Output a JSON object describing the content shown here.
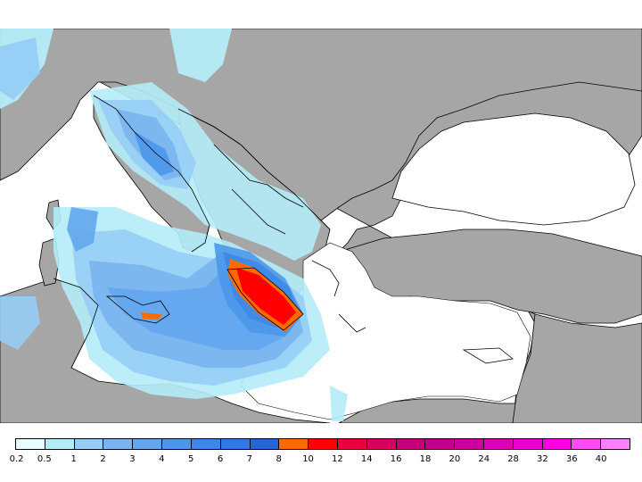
{
  "map": {
    "land_color": "#a6a6a6",
    "sea_color": "#ffffff",
    "border_color": "#000000"
  },
  "legend": {
    "labels": [
      "0.2",
      "0.5",
      "1",
      "2",
      "3",
      "4",
      "5",
      "6",
      "7",
      "8",
      "10",
      "12",
      "14",
      "16",
      "18",
      "20",
      "24",
      "28",
      "32",
      "36",
      "40"
    ],
    "colors": [
      "#e8ffff",
      "#b4ecf8",
      "#97cdf5",
      "#7ab4f0",
      "#63a6ee",
      "#4d97ea",
      "#3d88e6",
      "#2f7ae2",
      "#2666d4",
      "#ff6a00",
      "#ff0000",
      "#ec0040",
      "#d8005e",
      "#c4007a",
      "#c0008a",
      "#cc00a0",
      "#dc00b8",
      "#ec00cc",
      "#ff00e0",
      "#ff4cf0",
      "#ff80ff"
    ]
  }
}
